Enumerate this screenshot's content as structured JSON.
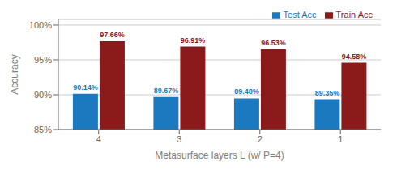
{
  "chart_data": {
    "type": "bar",
    "categories": [
      "4",
      "3",
      "2",
      "1"
    ],
    "series": [
      {
        "name": "Test Acc",
        "color": "#1b7abf",
        "values": [
          90.14,
          89.67,
          89.48,
          89.35
        ],
        "value_labels": [
          "90.14%",
          "89.67%",
          "89.48%",
          "89.35%"
        ]
      },
      {
        "name": "Train Acc",
        "color": "#8b1a1a",
        "values": [
          97.66,
          96.91,
          96.53,
          94.58
        ],
        "value_labels": [
          "97.66%",
          "96.91%",
          "96.53%",
          "94.58%"
        ]
      }
    ],
    "x_label": "Metasurface layers L (w/ P=4)",
    "y_label": "Accuracy",
    "ylim": [
      85,
      100.8
    ],
    "yticks": [
      {
        "value": 85,
        "label": "85%"
      },
      {
        "value": 90,
        "label": "90%"
      },
      {
        "value": 95,
        "label": "95%"
      },
      {
        "value": 100,
        "label": "100%"
      }
    ],
    "grid": true,
    "legend": "upper right",
    "data_labels": true
  }
}
